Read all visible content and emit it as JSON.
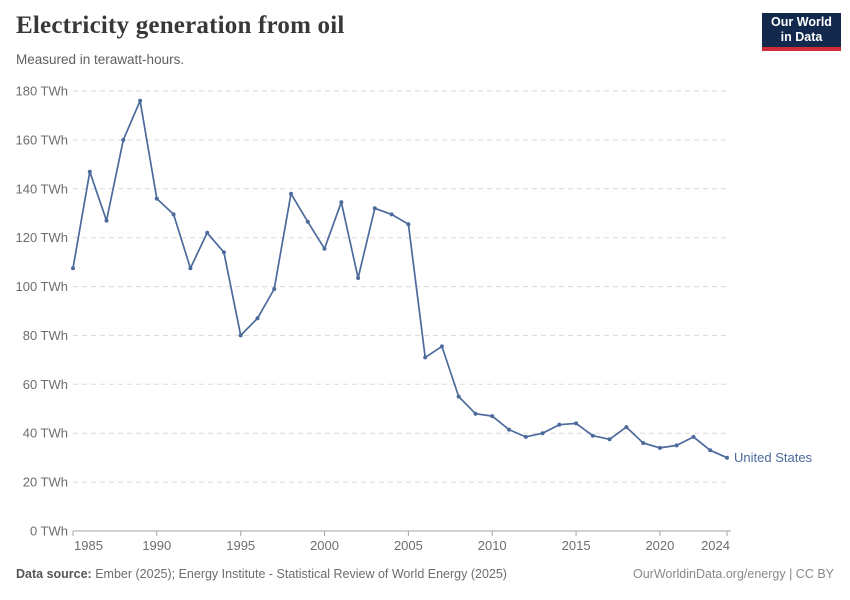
{
  "header": {
    "title": "Electricity generation from oil",
    "subtitle": "Measured in terawatt-hours."
  },
  "logo": {
    "line1": "Our World",
    "line2": "in Data",
    "bg_color": "#12294d",
    "stripe_color": "#cd2d37"
  },
  "footer": {
    "source_label": "Data source:",
    "source_text": " Ember (2025); Energy Institute - Statistical Review of World Energy (2025)",
    "right_text": "OurWorldinData.org/energy | CC BY"
  },
  "chart_data": {
    "type": "line",
    "title": "Electricity generation from oil",
    "subtitle": "Measured in terawatt-hours.",
    "ylabel": "TWh",
    "xlabel": "",
    "ylim": [
      0,
      180
    ],
    "grid": "horizontal dashed",
    "legend_position": "end-of-line label",
    "yticks": [
      0,
      20,
      40,
      60,
      80,
      100,
      120,
      140,
      160,
      180
    ],
    "ytick_labels": [
      "0 TWh",
      "20 TWh",
      "40 TWh",
      "60 TWh",
      "80 TWh",
      "100 TWh",
      "120 TWh",
      "140 TWh",
      "160 TWh",
      "180 TWh"
    ],
    "xticks": [
      1985,
      1990,
      1995,
      2000,
      2005,
      2010,
      2015,
      2020,
      2024
    ],
    "x": [
      1985,
      1986,
      1987,
      1988,
      1989,
      1990,
      1991,
      1992,
      1993,
      1994,
      1995,
      1996,
      1997,
      1998,
      1999,
      2000,
      2001,
      2002,
      2003,
      2004,
      2005,
      2006,
      2007,
      2008,
      2009,
      2010,
      2011,
      2012,
      2013,
      2014,
      2015,
      2016,
      2017,
      2018,
      2019,
      2020,
      2021,
      2022,
      2023,
      2024
    ],
    "series": [
      {
        "name": "United States",
        "color": "#4c6a9c",
        "values": [
          107.5,
          147,
          127,
          160,
          176,
          136,
          129.5,
          107.5,
          122,
          114,
          80,
          87,
          99,
          138,
          126.5,
          115.5,
          134.5,
          103.5,
          132,
          129.5,
          125.5,
          71,
          75.5,
          55,
          48,
          47,
          41.5,
          38.5,
          40,
          43.5,
          44,
          39,
          37.5,
          42.5,
          36,
          34,
          35,
          38.5,
          33,
          30
        ]
      }
    ]
  }
}
